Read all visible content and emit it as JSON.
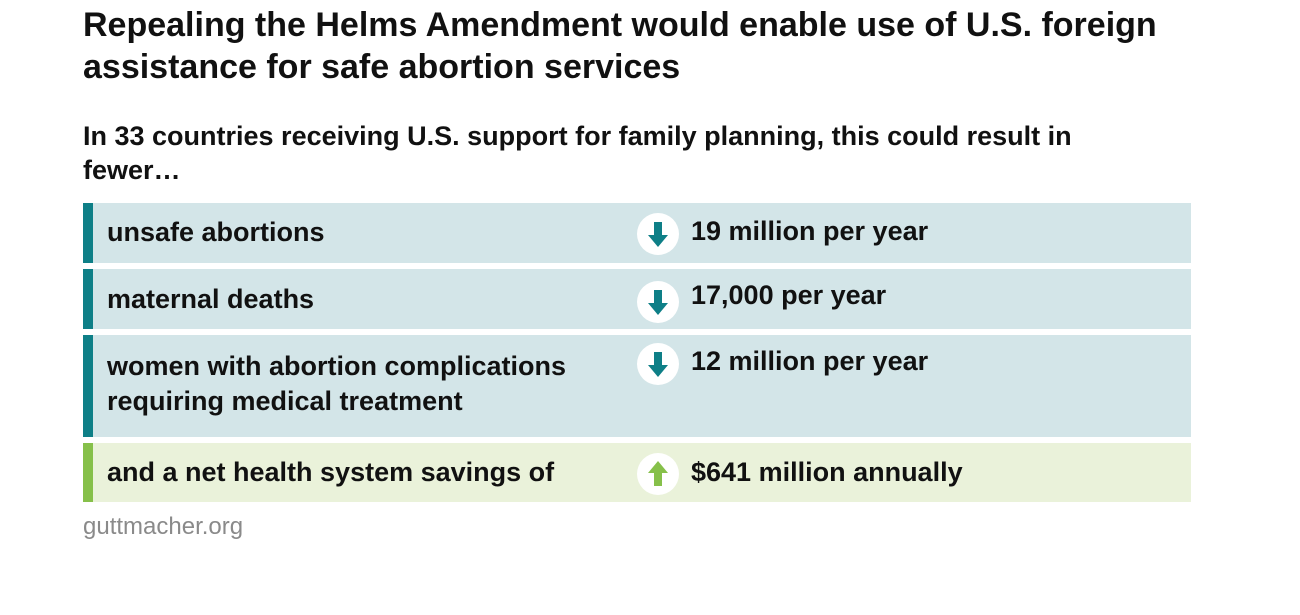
{
  "title": "Repealing the Helms Amendment would enable use of U.S. foreign assistance for safe abortion services",
  "subtitle": "In 33 countries receiving U.S. support for family planning, this could result in fewer…",
  "colors": {
    "teal_bar": "#0e7f87",
    "teal_background": "#d3e5e8",
    "green_bar": "#86c04a",
    "green_background": "#eaf2da"
  },
  "rows": [
    {
      "label": "unsafe abortions",
      "value": "19 million per year",
      "direction": "down",
      "icon": "arrow-down-icon"
    },
    {
      "label": "maternal deaths",
      "value": "17,000 per year",
      "direction": "down",
      "icon": "arrow-down-icon"
    },
    {
      "label": "women with abortion complications requiring medical treatment",
      "value": "12 million per year",
      "direction": "down",
      "icon": "arrow-down-icon"
    },
    {
      "label": "and a net health system savings of",
      "value": "$641 million annually",
      "direction": "up",
      "icon": "arrow-up-icon"
    }
  ],
  "source": "guttmacher.org"
}
